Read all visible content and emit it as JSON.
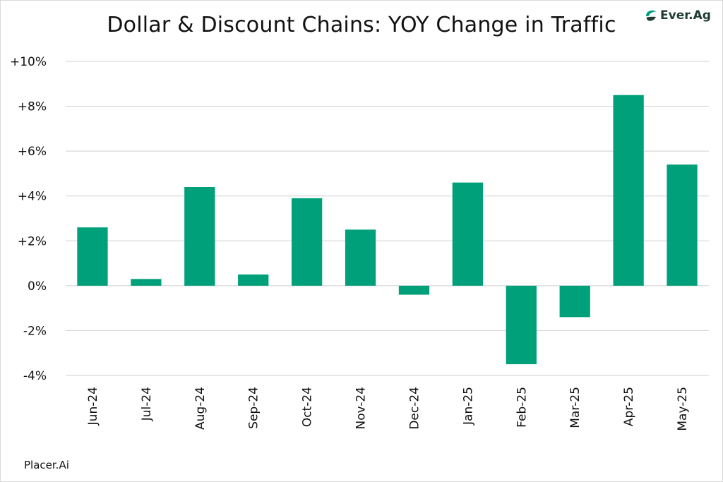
{
  "title": "Dollar & Discount Chains: YOY Change in Traffic",
  "source": "Placer.Ai",
  "logo": {
    "text": "Ever.Ag",
    "icon": "ever-ag-leaf-icon",
    "color": "#1f3c34"
  },
  "colors": {
    "bar": "#00a07a",
    "grid": "#cfcfcf",
    "text": "#111111"
  },
  "chart_data": {
    "type": "bar",
    "title": "Dollar & Discount Chains: YOY Change in Traffic",
    "xlabel": "",
    "ylabel": "",
    "categories": [
      "Jun-24",
      "Jul-24",
      "Aug-24",
      "Sep-24",
      "Oct-24",
      "Nov-24",
      "Dec-24",
      "Jan-25",
      "Feb-25",
      "Mar-25",
      "Apr-25",
      "May-25"
    ],
    "values": [
      2.6,
      0.3,
      4.4,
      0.5,
      3.9,
      2.5,
      -0.4,
      4.6,
      -3.5,
      -1.4,
      8.5,
      5.4
    ],
    "unit": "%",
    "ylim": [
      -4,
      10
    ],
    "yticks": [
      10,
      8,
      6,
      4,
      2,
      0,
      -2,
      -4
    ],
    "ytick_labels": [
      "+10%",
      "+8%",
      "+6%",
      "+4%",
      "+2%",
      "0%",
      "-2%",
      "-4%"
    ],
    "grid": true,
    "legend": "none"
  }
}
